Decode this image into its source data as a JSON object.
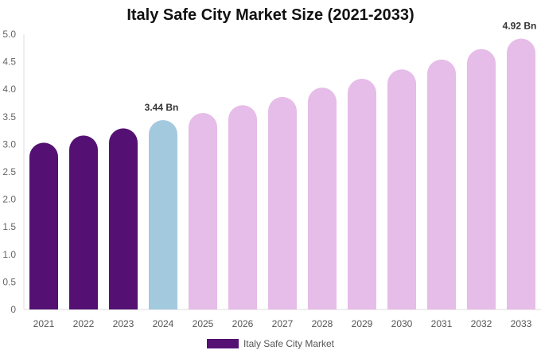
{
  "chart_data": {
    "type": "bar",
    "title": "Italy Safe City Market Size (2021-2033)",
    "xlabel": "",
    "ylabel": "",
    "ylim": [
      0,
      5.0
    ],
    "yticks": [
      "0",
      "0.5",
      "1.0",
      "1.5",
      "2.0",
      "2.5",
      "3.0",
      "3.5",
      "4.0",
      "4.5",
      "5.0"
    ],
    "categories": [
      "2021",
      "2022",
      "2023",
      "2024",
      "2025",
      "2026",
      "2027",
      "2028",
      "2029",
      "2030",
      "2031",
      "2032",
      "2033"
    ],
    "series": [
      {
        "name": "Italy Safe City Market",
        "values": [
          3.03,
          3.16,
          3.29,
          3.44,
          3.57,
          3.71,
          3.86,
          4.03,
          4.19,
          4.36,
          4.54,
          4.73,
          4.92
        ]
      }
    ],
    "data_labels": {
      "3": "3.44 Bn",
      "12": "4.92 Bn"
    },
    "colors": {
      "historical": "#541173",
      "base_year": "#a3c9de",
      "forecast": "#e6bce8"
    },
    "grid": false,
    "legend_position": "bottom"
  }
}
